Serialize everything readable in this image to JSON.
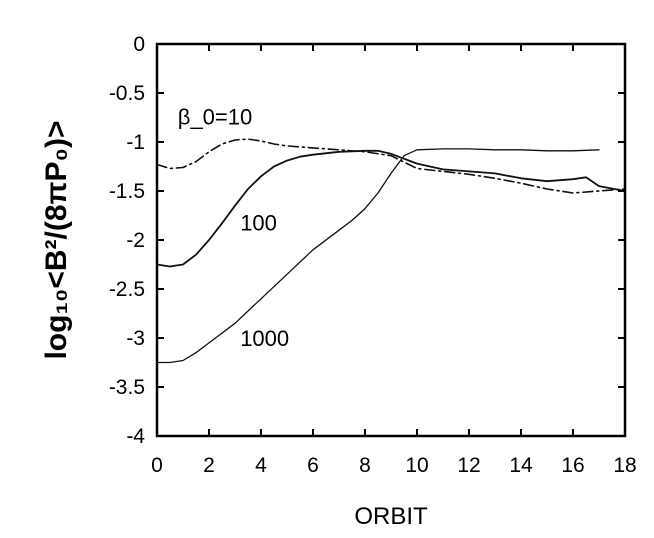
{
  "chart_data": {
    "type": "line",
    "title": "",
    "xlabel": "ORBIT",
    "ylabel": "log₁₀<B²/(8πP₀)>",
    "xlim": [
      0,
      18
    ],
    "ylim": [
      -4,
      0
    ],
    "xticks": [
      0,
      2,
      4,
      6,
      8,
      10,
      12,
      14,
      16,
      18
    ],
    "xtick_labels": [
      "0",
      "2",
      "4",
      "6",
      "8",
      "10",
      "12",
      "14",
      "16",
      "18"
    ],
    "yticks": [
      0,
      -0.5,
      -1,
      -1.5,
      -2,
      -2.5,
      -3,
      -3.5,
      -4
    ],
    "ytick_labels": [
      "0",
      "-0.5",
      "-1",
      "-1.5",
      "-2",
      "-2.5",
      "-3",
      "-3.5",
      "-4"
    ],
    "grid": false,
    "legend": "none",
    "annotations": [
      {
        "text": "β_0=10",
        "x": 0.8,
        "y": -0.74,
        "series": "beta10"
      },
      {
        "text": "100",
        "x": 3.2,
        "y": -1.82,
        "series": "beta100"
      },
      {
        "text": "1000",
        "x": 3.2,
        "y": -3.0,
        "series": "beta1000"
      }
    ],
    "series": [
      {
        "id": "beta10",
        "x": [
          0,
          0.5,
          1,
          1.5,
          2,
          2.5,
          3,
          3.5,
          4,
          4.5,
          5,
          6,
          7,
          8,
          9,
          10,
          11,
          12,
          13,
          14,
          15,
          16,
          17,
          18
        ],
        "values": [
          -1.23,
          -1.27,
          -1.26,
          -1.2,
          -1.1,
          -1.02,
          -0.98,
          -0.97,
          -0.99,
          -1.02,
          -1.04,
          -1.06,
          -1.08,
          -1.1,
          -1.14,
          -1.27,
          -1.3,
          -1.33,
          -1.37,
          -1.42,
          -1.48,
          -1.52,
          -1.5,
          -1.48
        ]
      },
      {
        "id": "beta100",
        "x": [
          0,
          0.5,
          1,
          1.5,
          2,
          2.5,
          3,
          3.5,
          4,
          4.5,
          5,
          5.5,
          6,
          7,
          8,
          8.5,
          9,
          10,
          11,
          12,
          13,
          14,
          15,
          16,
          16.5,
          17,
          18
        ],
        "values": [
          -2.25,
          -2.27,
          -2.25,
          -2.15,
          -2.0,
          -1.83,
          -1.65,
          -1.48,
          -1.35,
          -1.25,
          -1.19,
          -1.15,
          -1.13,
          -1.1,
          -1.09,
          -1.09,
          -1.12,
          -1.22,
          -1.28,
          -1.3,
          -1.32,
          -1.37,
          -1.4,
          -1.38,
          -1.36,
          -1.45,
          -1.5
        ]
      },
      {
        "id": "beta1000",
        "x": [
          0,
          0.5,
          1,
          1.5,
          2,
          3,
          4,
          5,
          6,
          7,
          7.5,
          8,
          8.5,
          9,
          9.5,
          10,
          11,
          12,
          13,
          14,
          15,
          16,
          17
        ],
        "values": [
          -3.25,
          -3.25,
          -3.23,
          -3.15,
          -3.05,
          -2.85,
          -2.6,
          -2.35,
          -2.1,
          -1.9,
          -1.8,
          -1.68,
          -1.52,
          -1.32,
          -1.14,
          -1.08,
          -1.07,
          -1.07,
          -1.08,
          -1.08,
          -1.09,
          -1.09,
          -1.08
        ]
      }
    ]
  }
}
